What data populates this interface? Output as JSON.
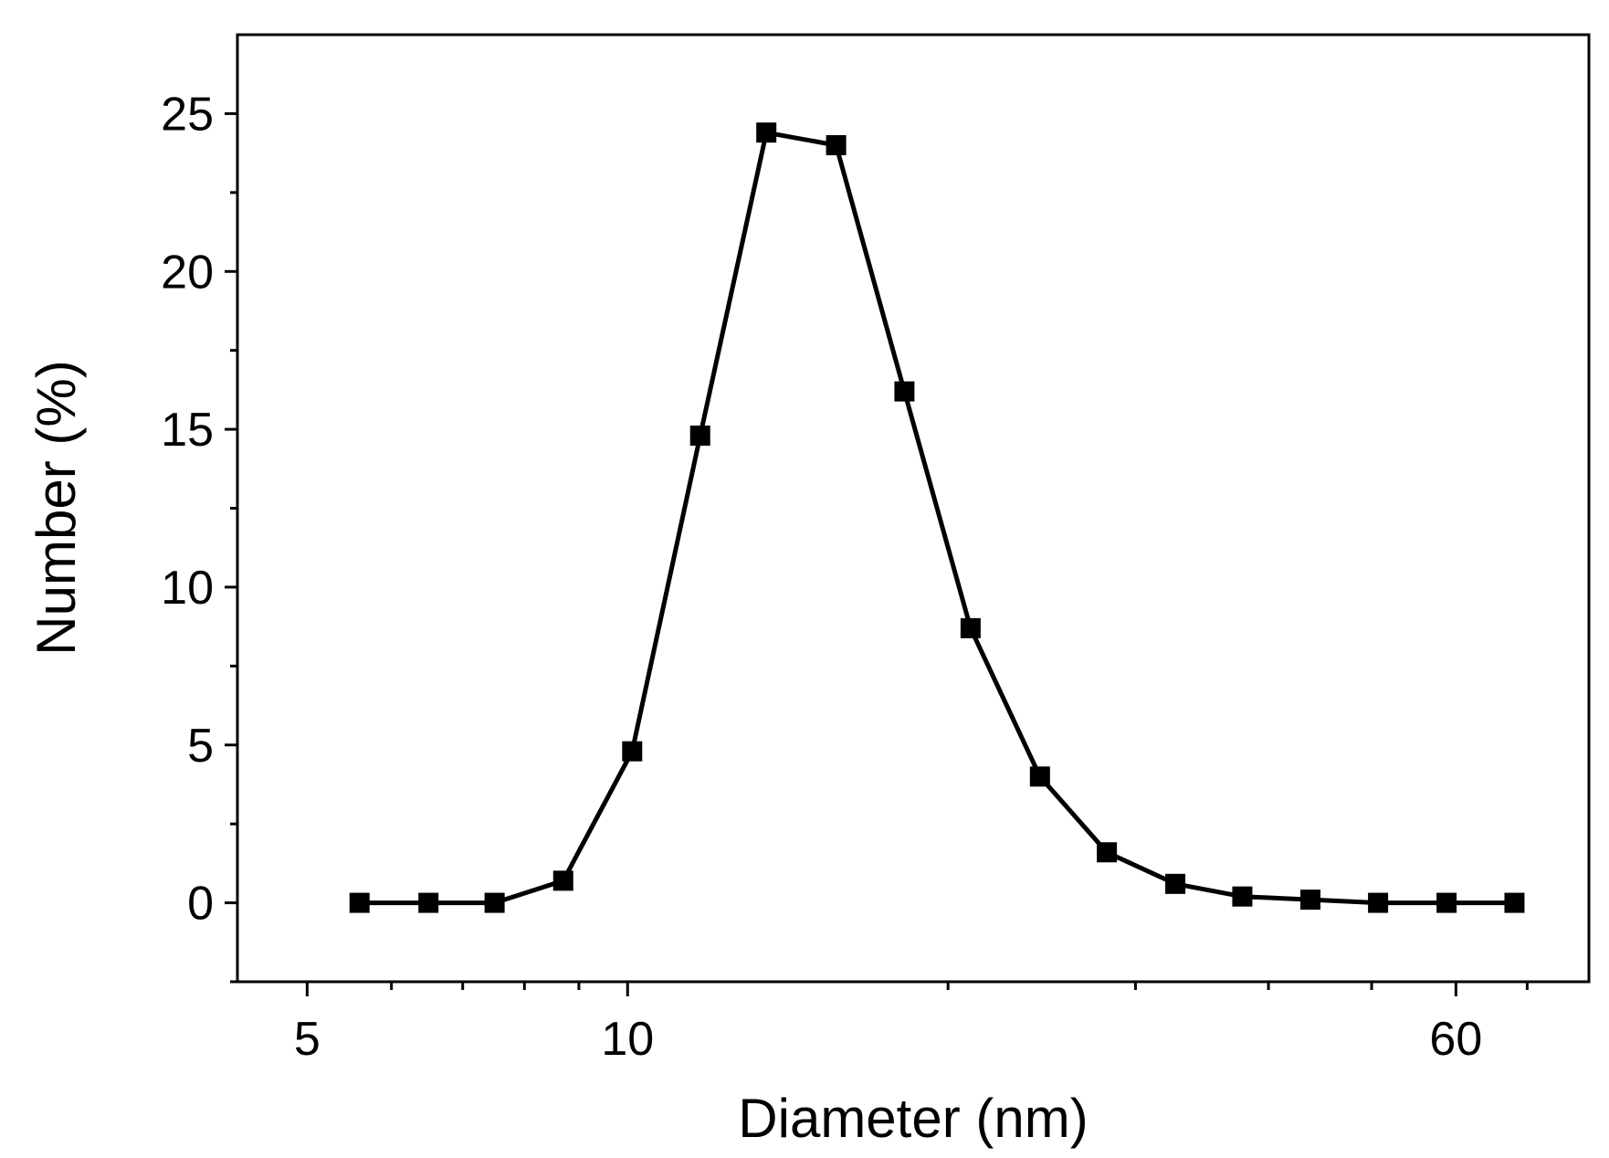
{
  "chart_data": {
    "type": "line",
    "title": "",
    "xlabel": "Diameter (nm)",
    "ylabel": "Number (%)",
    "x_scale": "log",
    "xlim": [
      4.3,
      80
    ],
    "ylim": [
      -2.5,
      27.5
    ],
    "x_ticks": [
      {
        "value": 5,
        "label": "5"
      },
      {
        "value": 10,
        "label": "10"
      },
      {
        "value": 60,
        "label": "60"
      }
    ],
    "x_minor_ticks": [
      6,
      7,
      8,
      9,
      20,
      30,
      40,
      50,
      70
    ],
    "y_ticks": [
      {
        "value": 0,
        "label": "0"
      },
      {
        "value": 5,
        "label": "5"
      },
      {
        "value": 10,
        "label": "10"
      },
      {
        "value": 15,
        "label": "15"
      },
      {
        "value": 20,
        "label": "20"
      },
      {
        "value": 25,
        "label": "25"
      }
    ],
    "y_minor_ticks": [
      -2.5,
      2.5,
      7.5,
      12.5,
      17.5,
      22.5
    ],
    "grid": false,
    "legend": "none",
    "series": [
      {
        "marker": "square",
        "color": "#000000",
        "x": [
          5.6,
          6.5,
          7.5,
          8.7,
          10.1,
          11.7,
          13.5,
          15.7,
          18.2,
          21.0,
          24.4,
          28.2,
          32.7,
          37.8,
          43.8,
          50.7,
          58.8,
          68.1
        ],
        "y": [
          0,
          0,
          0,
          0.7,
          4.8,
          14.8,
          24.4,
          24.0,
          16.2,
          8.7,
          4.0,
          1.6,
          0.6,
          0.2,
          0.1,
          0,
          0,
          0
        ]
      }
    ]
  }
}
